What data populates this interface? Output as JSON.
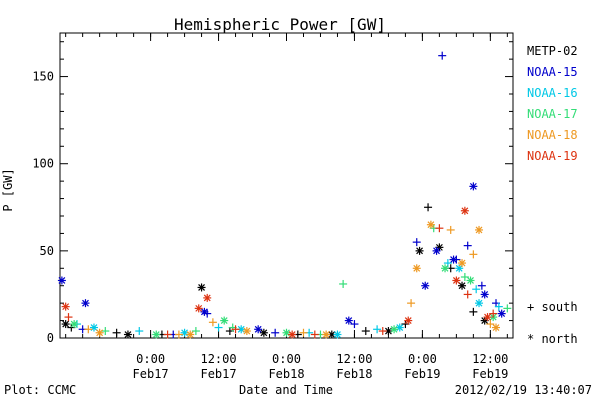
{
  "chart_data": {
    "type": "scatter",
    "title": "Hemispheric Power [GW]",
    "xlabel": "Date and Time",
    "ylabel": "P [GW]",
    "ylim": [
      0,
      175
    ],
    "xlim": [
      "2012-02-16 08:00",
      "2012-02-19 16:00"
    ],
    "x_ticks": [
      {
        "time": "0:00",
        "date": "Feb17",
        "at": "2012-02-17 00:00"
      },
      {
        "time": "12:00",
        "date": "Feb17",
        "at": "2012-02-17 12:00"
      },
      {
        "time": "0:00",
        "date": "Feb18",
        "at": "2012-02-18 00:00"
      },
      {
        "time": "12:00",
        "date": "Feb18",
        "at": "2012-02-18 12:00"
      },
      {
        "time": "0:00",
        "date": "Feb19",
        "at": "2012-02-19 00:00"
      },
      {
        "time": "12:00",
        "date": "Feb19",
        "at": "2012-02-19 12:00"
      }
    ],
    "y_ticks": [
      0,
      50,
      100,
      150
    ],
    "legend_position": "right",
    "markers": {
      "south_symbol": "+",
      "south_label": "south",
      "north_symbol": "*",
      "north_label": "north"
    },
    "series": [
      {
        "name": "METP-02",
        "color": "#000000",
        "south": [
          [
            "2012-02-16 10:00",
            6
          ],
          [
            "2012-02-16 18:00",
            3
          ],
          [
            "2012-02-17 02:00",
            2
          ],
          [
            "2012-02-17 14:00",
            4
          ],
          [
            "2012-02-18 02:00",
            2
          ],
          [
            "2012-02-18 14:00",
            4
          ],
          [
            "2012-02-18 21:00",
            8
          ],
          [
            "2012-02-19 01:00",
            75
          ],
          [
            "2012-02-19 05:00",
            40
          ],
          [
            "2012-02-19 09:00",
            15
          ]
        ],
        "north": [
          [
            "2012-02-16 09:00",
            8
          ],
          [
            "2012-02-16 20:00",
            2
          ],
          [
            "2012-02-17 09:00",
            29
          ],
          [
            "2012-02-17 20:00",
            3
          ],
          [
            "2012-02-18 08:00",
            2
          ],
          [
            "2012-02-18 18:00",
            4
          ],
          [
            "2012-02-18 23:30",
            50
          ],
          [
            "2012-02-19 03:00",
            52
          ],
          [
            "2012-02-19 07:00",
            30
          ],
          [
            "2012-02-19 11:00",
            10
          ]
        ]
      },
      {
        "name": "NOAA-15",
        "color": "#0000cc",
        "south": [
          [
            "2012-02-16 12:00",
            5
          ],
          [
            "2012-02-17 04:00",
            2
          ],
          [
            "2012-02-17 10:00",
            14
          ],
          [
            "2012-02-17 22:00",
            3
          ],
          [
            "2012-02-18 12:00",
            8
          ],
          [
            "2012-02-18 23:00",
            55
          ],
          [
            "2012-02-19 03:30",
            162
          ],
          [
            "2012-02-19 06:00",
            45
          ],
          [
            "2012-02-19 08:00",
            53
          ],
          [
            "2012-02-19 10:30",
            30
          ],
          [
            "2012-02-19 13:00",
            20
          ]
        ],
        "north": [
          [
            "2012-02-16 08:20",
            33
          ],
          [
            "2012-02-16 12:30",
            20
          ],
          [
            "2012-02-17 09:30",
            15
          ],
          [
            "2012-02-17 19:00",
            5
          ],
          [
            "2012-02-18 11:00",
            10
          ],
          [
            "2012-02-19 00:30",
            30
          ],
          [
            "2012-02-19 02:30",
            50
          ],
          [
            "2012-02-19 05:30",
            45
          ],
          [
            "2012-02-19 09:00",
            87
          ],
          [
            "2012-02-19 11:00",
            25
          ],
          [
            "2012-02-19 14:00",
            14
          ]
        ]
      },
      {
        "name": "NOAA-16",
        "color": "#00c8e6",
        "south": [
          [
            "2012-02-16 11:00",
            8
          ],
          [
            "2012-02-16 22:00",
            4
          ],
          [
            "2012-02-17 12:00",
            6
          ],
          [
            "2012-02-18 04:00",
            3
          ],
          [
            "2012-02-18 16:00",
            5
          ],
          [
            "2012-02-19 04:30",
            43
          ],
          [
            "2012-02-19 09:30",
            28
          ],
          [
            "2012-02-19 13:30",
            18
          ]
        ],
        "north": [
          [
            "2012-02-16 14:00",
            6
          ],
          [
            "2012-02-17 06:00",
            3
          ],
          [
            "2012-02-17 16:00",
            5
          ],
          [
            "2012-02-18 09:00",
            2
          ],
          [
            "2012-02-18 20:00",
            6
          ],
          [
            "2012-02-19 06:30",
            40
          ],
          [
            "2012-02-19 10:00",
            20
          ]
        ]
      },
      {
        "name": "NOAA-17",
        "color": "#33dd77",
        "south": [
          [
            "2012-02-16 16:00",
            4
          ],
          [
            "2012-02-17 08:00",
            4
          ],
          [
            "2012-02-17 14:30",
            6
          ],
          [
            "2012-02-18 06:00",
            2
          ],
          [
            "2012-02-18 10:00",
            31
          ],
          [
            "2012-02-19 02:00",
            63
          ],
          [
            "2012-02-19 07:30",
            35
          ],
          [
            "2012-02-19 15:00",
            17
          ]
        ],
        "north": [
          [
            "2012-02-16 10:30",
            8
          ],
          [
            "2012-02-17 01:00",
            2
          ],
          [
            "2012-02-17 13:00",
            10
          ],
          [
            "2012-02-18 00:00",
            3
          ],
          [
            "2012-02-18 19:00",
            5
          ],
          [
            "2012-02-19 04:00",
            40
          ],
          [
            "2012-02-19 08:30",
            33
          ],
          [
            "2012-02-19 12:30",
            12
          ]
        ]
      },
      {
        "name": "NOAA-18",
        "color": "#ee9922",
        "south": [
          [
            "2012-02-16 13:00",
            5
          ],
          [
            "2012-02-17 05:00",
            2
          ],
          [
            "2012-02-17 11:00",
            9
          ],
          [
            "2012-02-18 03:00",
            3
          ],
          [
            "2012-02-18 22:00",
            20
          ],
          [
            "2012-02-19 05:00",
            62
          ],
          [
            "2012-02-19 09:00",
            48
          ],
          [
            "2012-02-19 12:00",
            8
          ]
        ],
        "north": [
          [
            "2012-02-16 15:00",
            3
          ],
          [
            "2012-02-17 07:00",
            2
          ],
          [
            "2012-02-17 17:00",
            4
          ],
          [
            "2012-02-18 07:00",
            2
          ],
          [
            "2012-02-18 23:00",
            40
          ],
          [
            "2012-02-19 01:30",
            65
          ],
          [
            "2012-02-19 07:00",
            43
          ],
          [
            "2012-02-19 10:00",
            62
          ],
          [
            "2012-02-19 13:00",
            6
          ]
        ]
      },
      {
        "name": "NOAA-19",
        "color": "#dd3311",
        "south": [
          [
            "2012-02-16 09:30",
            12
          ],
          [
            "2012-02-17 03:00",
            2
          ],
          [
            "2012-02-17 15:00",
            5
          ],
          [
            "2012-02-18 05:00",
            2
          ],
          [
            "2012-02-18 17:00",
            4
          ],
          [
            "2012-02-19 03:00",
            63
          ],
          [
            "2012-02-19 08:00",
            25
          ],
          [
            "2012-02-19 12:30",
            14
          ]
        ],
        "north": [
          [
            "2012-02-16 09:00",
            18
          ],
          [
            "2012-02-17 08:30",
            17
          ],
          [
            "2012-02-17 10:00",
            23
          ],
          [
            "2012-02-18 01:00",
            2
          ],
          [
            "2012-02-18 21:30",
            10
          ],
          [
            "2012-02-19 06:00",
            33
          ],
          [
            "2012-02-19 07:30",
            73
          ],
          [
            "2012-02-19 11:30",
            12
          ]
        ]
      }
    ]
  },
  "footer": {
    "plot_credit": "Plot: CCMC",
    "timestamp": "2012/02/19 13:40:07"
  }
}
